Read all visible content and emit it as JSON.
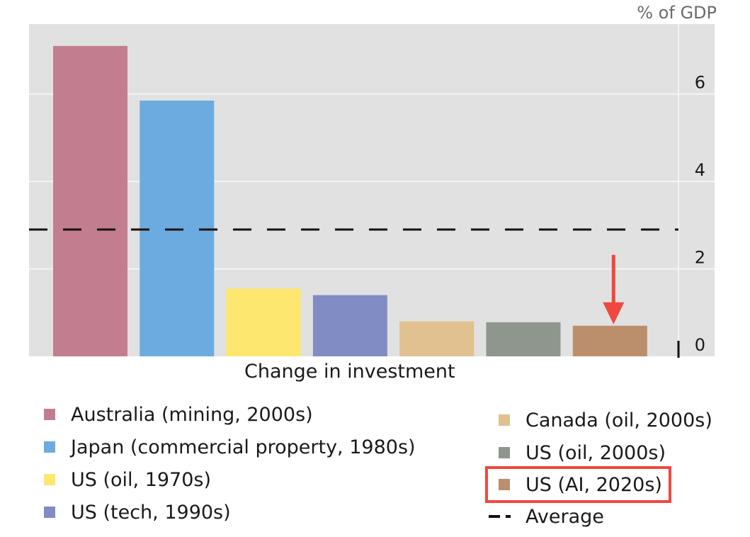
{
  "chart_data": {
    "type": "bar",
    "title": "",
    "unit_label": "% of GDP",
    "xlabel": "Change in investment",
    "ylabel": "% of GDP",
    "ylim": [
      0,
      7.6
    ],
    "yticks": [
      0,
      2,
      4,
      6
    ],
    "y_axis_side": "right",
    "grid": true,
    "categories": [
      "Australia (mining, 2000s)",
      "Japan (commercial property, 1980s)",
      "US (oil, 1970s)",
      "US (tech, 1990s)",
      "Canada (oil, 2000s)",
      "US (oil, 2000s)",
      "US (AI, 2020s)"
    ],
    "values": [
      7.1,
      5.85,
      1.55,
      1.4,
      0.8,
      0.78,
      0.7
    ],
    "colors": [
      "#c27e8e",
      "#6cabdf",
      "#fee76e",
      "#808cc3",
      "#e1c18f",
      "#8f968d",
      "#bb8e6c"
    ],
    "average": {
      "label": "Average",
      "value": 2.9
    },
    "highlight": {
      "category": "US (AI, 2020s)",
      "annotation": "red-arrow",
      "color": "#f0483e"
    },
    "legend": {
      "left": [
        {
          "label": "Australia (mining, 2000s)",
          "color": "#c27e8e"
        },
        {
          "label": "Japan (commercial property, 1980s)",
          "color": "#6cabdf"
        },
        {
          "label": "US (oil, 1970s)",
          "color": "#fee76e"
        },
        {
          "label": "US (tech, 1990s)",
          "color": "#808cc3"
        }
      ],
      "right": [
        {
          "label": "Canada (oil, 2000s)",
          "color": "#e1c18f"
        },
        {
          "label": "US (oil, 2000s)",
          "color": "#8f968d"
        },
        {
          "label": "US (AI, 2020s)",
          "color": "#bb8e6c"
        },
        {
          "label": "Average"
        }
      ],
      "placement": "bottom"
    }
  },
  "colors": {
    "plot_background": "#e1e1e1",
    "gridline": "#f4f4f4",
    "highlight": "#f0483e"
  }
}
